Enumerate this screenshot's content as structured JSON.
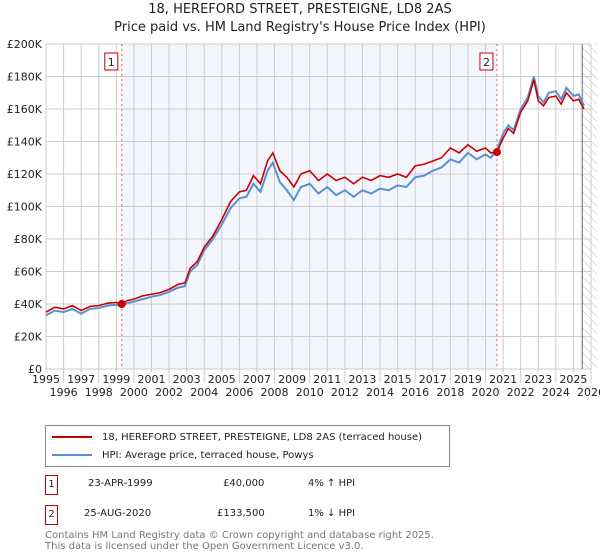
{
  "chart_data": {
    "type": "line",
    "title": "18, HEREFORD STREET, PRESTEIGNE, LD8 2AS",
    "subtitle": "Price paid vs. HM Land Registry's House Price Index (HPI)",
    "xlim": [
      1995,
      2026
    ],
    "ylim": [
      0,
      200000
    ],
    "y_ticks": [
      0,
      20000,
      40000,
      60000,
      80000,
      100000,
      120000,
      140000,
      160000,
      180000,
      200000
    ],
    "y_tick_labels": [
      "£0",
      "£20K",
      "£40K",
      "£60K",
      "£80K",
      "£100K",
      "£120K",
      "£140K",
      "£160K",
      "£180K",
      "£200K"
    ],
    "x_ticks": [
      1995,
      1996,
      1997,
      1998,
      1999,
      2000,
      2001,
      2002,
      2003,
      2004,
      2005,
      2006,
      2007,
      2008,
      2009,
      2010,
      2011,
      2012,
      2013,
      2014,
      2015,
      2016,
      2017,
      2018,
      2019,
      2020,
      2021,
      2022,
      2023,
      2024,
      2025,
      2026
    ],
    "grid": true,
    "x": [
      1995,
      1995.5,
      1996,
      1996.5,
      1997,
      1997.5,
      1998,
      1998.5,
      1999,
      1999.3,
      1999.6,
      2000,
      2000.5,
      2001,
      2001.5,
      2002,
      2002.5,
      2002.9,
      2003.2,
      2003.6,
      2004,
      2004.5,
      2005,
      2005.5,
      2006,
      2006.4,
      2006.8,
      2007.2,
      2007.6,
      2007.9,
      2008.3,
      2008.7,
      2009.1,
      2009.5,
      2010,
      2010.5,
      2011,
      2011.5,
      2012,
      2012.5,
      2013,
      2013.5,
      2014,
      2014.5,
      2015,
      2015.5,
      2016,
      2016.5,
      2017,
      2017.5,
      2018,
      2018.5,
      2019,
      2019.5,
      2020,
      2020.3,
      2020.65,
      2021,
      2021.3,
      2021.6,
      2022,
      2022.4,
      2022.75,
      2023,
      2023.3,
      2023.6,
      2024,
      2024.3,
      2024.6,
      2025,
      2025.3,
      2025.6
    ],
    "series": [
      {
        "name": "18, HEREFORD STREET, PRESTEIGNE, LD8 2AS (terraced house)",
        "color": "#cc0000",
        "values": [
          35000,
          38000,
          37000,
          39000,
          36000,
          38500,
          39000,
          40500,
          41000,
          40000,
          42000,
          43000,
          45000,
          46000,
          47000,
          49000,
          52000,
          53000,
          62000,
          66000,
          75000,
          82000,
          92000,
          103000,
          109000,
          110000,
          119000,
          114000,
          128000,
          133000,
          122000,
          118000,
          112000,
          120000,
          122000,
          116000,
          120000,
          116000,
          118000,
          114000,
          118000,
          116000,
          119000,
          118000,
          120000,
          118000,
          125000,
          126000,
          128000,
          130000,
          136000,
          133000,
          138000,
          134000,
          136000,
          133000,
          133500,
          142000,
          148000,
          145000,
          158000,
          165000,
          178000,
          165000,
          162000,
          167000,
          168000,
          163000,
          170000,
          165000,
          166000,
          160000
        ]
      },
      {
        "name": "HPI: Average price, terraced house, Powys",
        "color": "#5b8fd4",
        "values": [
          33000,
          36000,
          35000,
          37000,
          34000,
          37000,
          37500,
          39000,
          39500,
          38500,
          40500,
          41500,
          43000,
          44500,
          45500,
          47500,
          50000,
          51000,
          60000,
          64000,
          73000,
          80000,
          89000,
          99000,
          105000,
          106000,
          114000,
          109000,
          122000,
          127000,
          115000,
          110000,
          104000,
          112000,
          114000,
          108000,
          112000,
          107000,
          110000,
          106000,
          110000,
          108000,
          111000,
          110000,
          113000,
          112000,
          118000,
          119000,
          122000,
          124000,
          129000,
          127000,
          133000,
          129000,
          132000,
          130000,
          135000,
          145000,
          150000,
          147000,
          160000,
          167000,
          180000,
          168000,
          164000,
          170000,
          171000,
          166000,
          173000,
          168000,
          169000,
          162000
        ]
      }
    ],
    "sales": [
      {
        "label": "1",
        "x": 1999.31,
        "y": 40000,
        "date": "23-APR-1999",
        "price": "£40,000",
        "hpi_delta": "4% ↑ HPI"
      },
      {
        "label": "2",
        "x": 2020.65,
        "y": 133500,
        "date": "25-AUG-2020",
        "price": "£133,500",
        "hpi_delta": "1% ↓ HPI"
      }
    ],
    "shaded_range": [
      1999.31,
      2020.65
    ],
    "hatched_from": 2025.5,
    "legend_placement": "below"
  },
  "footer": {
    "line1": "Contains HM Land Registry data © Crown copyright and database right 2025.",
    "line2": "This data is licensed under the Open Government Licence v3.0."
  }
}
